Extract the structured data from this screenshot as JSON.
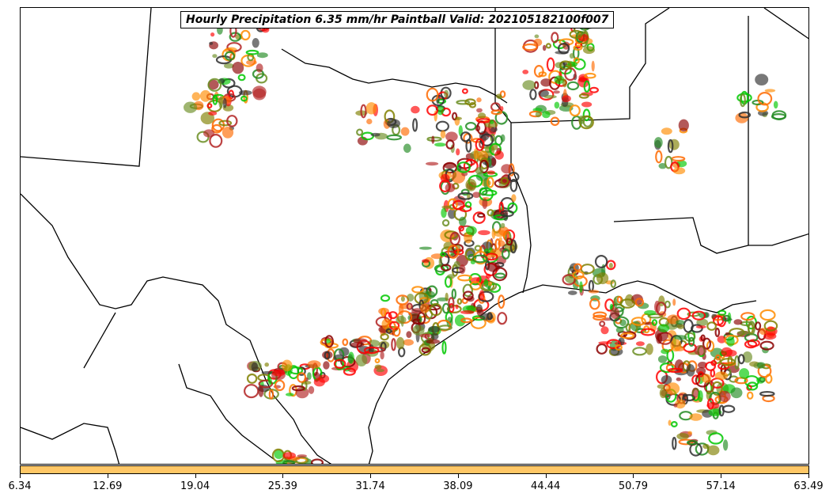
{
  "title": "Hourly Precipitation 6.35 mm/hr Paintball Valid: 202105182100f007",
  "colorbar": {
    "color": "#ffc766",
    "ticks": [
      "6.34",
      "12.69",
      "19.04",
      "25.39",
      "31.74",
      "38.09",
      "44.44",
      "50.79",
      "57.14",
      "63.49"
    ]
  },
  "palette": [
    "#ff0000",
    "#ff8c00",
    "#00c800",
    "#808000",
    "#8b0000",
    "#228b22",
    "#2f2f2f",
    "#b22222",
    "#ff6a00",
    "#6b8e23"
  ]
}
